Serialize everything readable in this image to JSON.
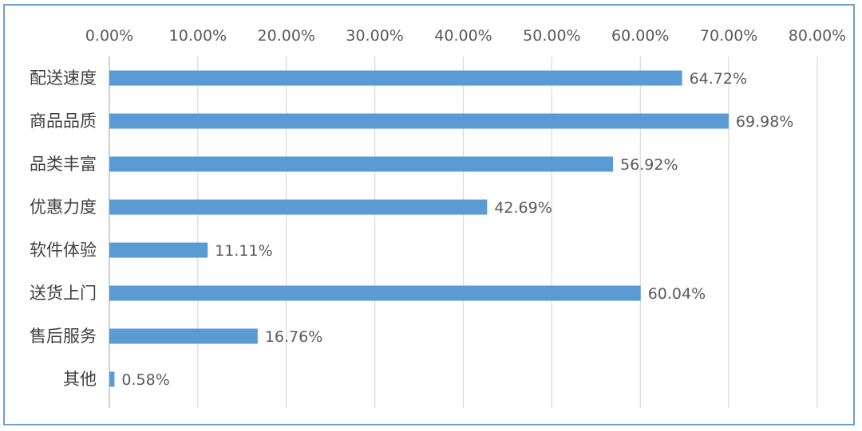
{
  "chart_data": {
    "type": "bar",
    "orientation": "horizontal",
    "title": "",
    "xlabel": "",
    "ylabel": "",
    "categories": [
      "配送速度",
      "商品品质",
      "品类丰富",
      "优惠力度",
      "软件体验",
      "送货上门",
      "售后服务",
      "其他"
    ],
    "values": [
      64.72,
      69.98,
      56.92,
      42.69,
      11.11,
      60.04,
      16.76,
      0.58
    ],
    "data_labels": [
      "64.72%",
      "69.98%",
      "56.92%",
      "42.69%",
      "11.11%",
      "60.04%",
      "16.76%",
      "0.58%"
    ],
    "xlim": [
      0,
      80
    ],
    "x_ticks": [
      0,
      10,
      20,
      30,
      40,
      50,
      60,
      70,
      80
    ],
    "x_tick_labels": [
      "0.00%",
      "10.00%",
      "20.00%",
      "30.00%",
      "40.00%",
      "50.00%",
      "60.00%",
      "70.00%",
      "80.00%"
    ],
    "x_axis_position": "top",
    "grid": true,
    "legend": "none",
    "bar_color": "#5b9bd5",
    "grid_color": "#d9d9d9",
    "frame_color": "#6fa0c8"
  }
}
